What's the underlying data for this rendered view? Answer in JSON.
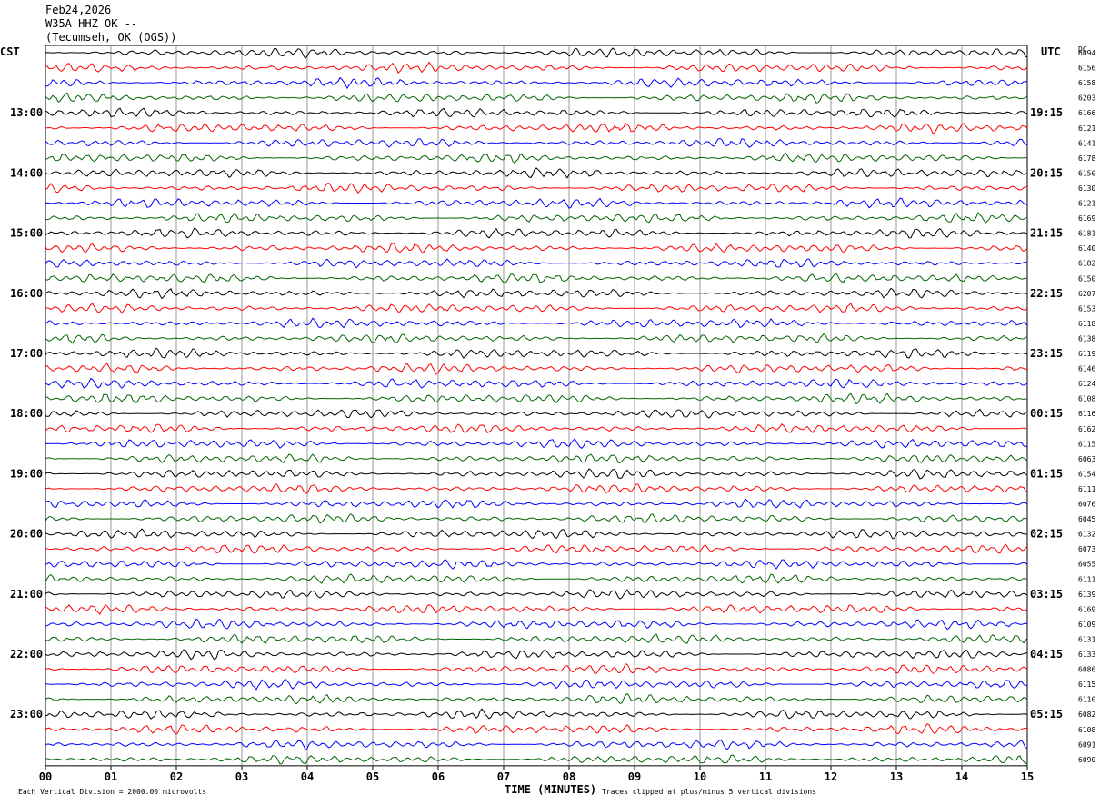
{
  "header": {
    "date": "Feb24,2026",
    "station": "W35A HHZ OK --",
    "location": "(Tecumseh, OK (OGS))"
  },
  "labels": {
    "left_tz": "CST",
    "right_tz": "UTC",
    "dc_label": "DC",
    "x_axis_title": "TIME (MINUTES)",
    "scale_note": "Each Vertical Division = 2000.00 microvolts",
    "clip_note": "Traces clipped at plus/minus 5 vertical divisions"
  },
  "colors": {
    "trace_cycle": [
      "#000000",
      "#ff0000",
      "#0000ff",
      "#006400"
    ],
    "gridline": "#808080"
  },
  "chart_data": {
    "type": "line",
    "title": "",
    "x_ticks": [
      "00",
      "01",
      "02",
      "03",
      "04",
      "05",
      "06",
      "07",
      "08",
      "09",
      "10",
      "11",
      "12",
      "13",
      "14",
      "15"
    ],
    "xlim": [
      0,
      15
    ],
    "left_hour_labels": [
      "13:00",
      "14:00",
      "15:00",
      "16:00",
      "17:00",
      "18:00",
      "19:00",
      "20:00",
      "21:00",
      "22:00",
      "23:00"
    ],
    "right_hour_labels": [
      "19:15",
      "20:15",
      "21:15",
      "22:15",
      "23:15",
      "00:15",
      "01:15",
      "02:15",
      "03:15",
      "04:15",
      "05:15"
    ],
    "dc_offsets": [
      "6094",
      "6156",
      "6158",
      "6203",
      "6166",
      "6121",
      "6141",
      "6178",
      "6150",
      "6130",
      "6121",
      "6169",
      "6181",
      "6140",
      "6182",
      "6150",
      "6207",
      "6153",
      "6118",
      "6138",
      "6119",
      "6146",
      "6124",
      "6108",
      "6116",
      "6162",
      "6115",
      "6063",
      "6154",
      "6111",
      "6076",
      "6045",
      "6132",
      "6073",
      "6055",
      "6111",
      "6139",
      "6169",
      "6109",
      "6131",
      "6133",
      "6086",
      "6115",
      "6110",
      "6082",
      "6108",
      "6091",
      "6090"
    ],
    "traces_per_hour": 4,
    "trace_minutes": 15,
    "first_hour_row_offset": 4
  }
}
